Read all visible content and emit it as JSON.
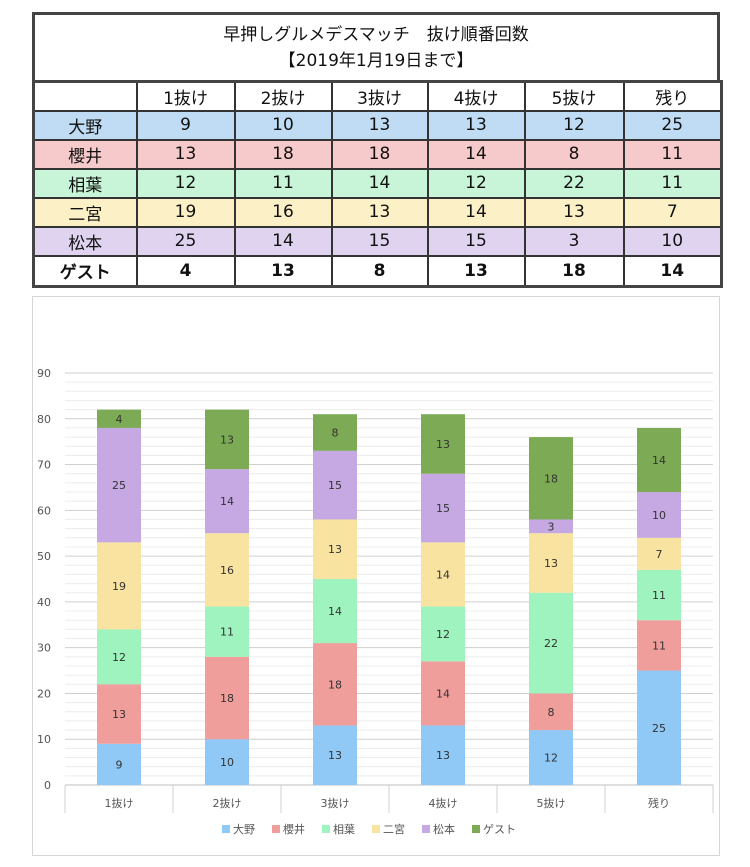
{
  "table": {
    "title_line1": "早押しグルメデスマッチ　抜け順番回数",
    "title_line2": "【2019年1月19日まで】",
    "columns": [
      "1抜け",
      "2抜け",
      "3抜け",
      "4抜け",
      "5抜け",
      "残り"
    ],
    "rows": [
      {
        "name": "大野",
        "color": "#bfdcf4",
        "values": [
          9,
          10,
          13,
          13,
          12,
          25
        ]
      },
      {
        "name": "櫻井",
        "color": "#f6caca",
        "values": [
          13,
          18,
          18,
          14,
          8,
          11
        ]
      },
      {
        "name": "相葉",
        "color": "#c8f5d8",
        "values": [
          12,
          11,
          14,
          12,
          22,
          11
        ]
      },
      {
        "name": "二宮",
        "color": "#fcf0c6",
        "values": [
          19,
          16,
          13,
          14,
          13,
          7
        ]
      },
      {
        "name": "松本",
        "color": "#dfd3ef",
        "values": [
          25,
          14,
          15,
          15,
          3,
          10
        ]
      },
      {
        "name": "ゲスト",
        "color": "#ffffff",
        "values": [
          4,
          13,
          8,
          13,
          18,
          14
        ]
      }
    ]
  },
  "chart_data": {
    "type": "bar",
    "stacked": true,
    "categories": [
      "1抜け",
      "2抜け",
      "3抜け",
      "4抜け",
      "5抜け",
      "残り"
    ],
    "series": [
      {
        "name": "大野",
        "color": "#90c8f6",
        "values": [
          9,
          10,
          13,
          13,
          12,
          25
        ]
      },
      {
        "name": "櫻井",
        "color": "#ef9e9c",
        "values": [
          13,
          18,
          18,
          14,
          8,
          11
        ]
      },
      {
        "name": "相葉",
        "color": "#9ef3be",
        "values": [
          12,
          11,
          14,
          12,
          22,
          11
        ]
      },
      {
        "name": "二宮",
        "color": "#f8e3a0",
        "values": [
          19,
          16,
          13,
          14,
          13,
          7
        ]
      },
      {
        "name": "松本",
        "color": "#c6a9e3",
        "values": [
          25,
          14,
          15,
          15,
          3,
          10
        ]
      },
      {
        "name": "ゲスト",
        "color": "#7dab55",
        "values": [
          4,
          13,
          8,
          13,
          18,
          14
        ]
      }
    ],
    "title": "",
    "xlabel": "",
    "ylabel": "",
    "ylim": [
      0,
      90
    ],
    "yticks": [
      0,
      10,
      20,
      30,
      40,
      50,
      60,
      70,
      80,
      90
    ],
    "grid": true,
    "legend": "bottom"
  }
}
